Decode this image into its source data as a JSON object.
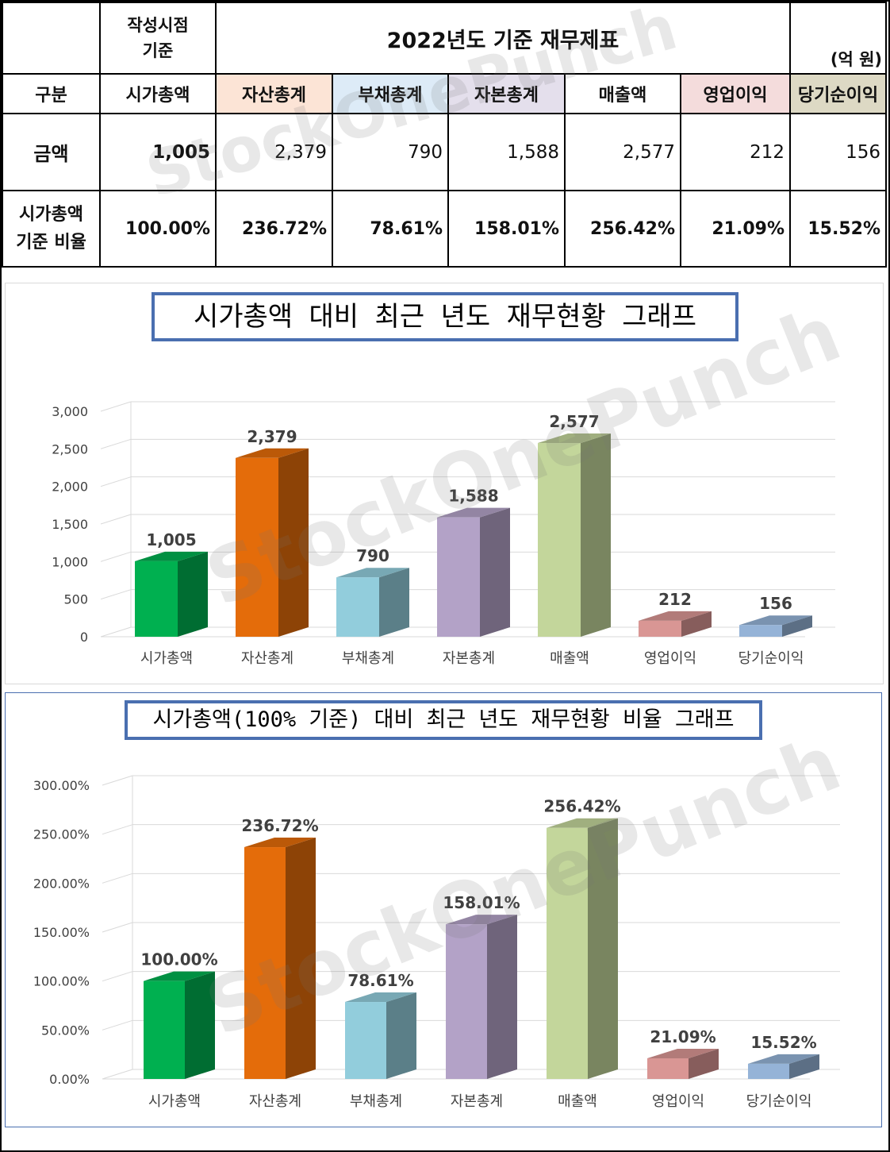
{
  "watermark": "StockOnePunch",
  "table": {
    "corner": "",
    "written_basis": [
      "작성시점",
      "기준"
    ],
    "title": "2022년도 기준 재무제표",
    "unit": "(억 원)",
    "row_header_label": "구분",
    "columns": [
      "시가총액",
      "자산총계",
      "부채총계",
      "자본총계",
      "매출액",
      "영업이익",
      "당기순이익"
    ],
    "column_colors": [
      "#ffffff",
      "#fce4d6",
      "#ddebf7",
      "#e4dfec",
      "#ffffff",
      "#f4dcdc",
      "#ddd9c4"
    ],
    "amount_label": "금액",
    "amounts": [
      "1,005",
      "2,379",
      "790",
      "1,588",
      "2,577",
      "212",
      "156"
    ],
    "ratio_label": [
      "시가총액",
      "기준 비율"
    ],
    "ratios": [
      "100.00%",
      "236.72%",
      "78.61%",
      "158.01%",
      "256.42%",
      "21.09%",
      "15.52%"
    ]
  },
  "chart_data": [
    {
      "type": "bar",
      "title": "시가총액 대비 최근 년도 재무현황 그래프",
      "categories": [
        "시가총액",
        "자산총계",
        "부채총계",
        "자본총계",
        "매출액",
        "영업이익",
        "당기순이익"
      ],
      "values": [
        1005,
        2379,
        790,
        1588,
        2577,
        212,
        156
      ],
      "value_labels": [
        "1,005",
        "2,379",
        "790",
        "1,588",
        "2,577",
        "212",
        "156"
      ],
      "ylim": [
        0,
        3000
      ],
      "yticks": [
        "0",
        "500",
        "1,000",
        "1,500",
        "2,000",
        "2,500",
        "3,000"
      ],
      "ytick_values": [
        0,
        500,
        1000,
        1500,
        2000,
        2500,
        3000
      ],
      "colors": [
        "#00b050",
        "#e46c0a",
        "#92cddc",
        "#b3a2c7",
        "#c3d69b",
        "#d99694",
        "#95b3d7"
      ],
      "grid": true,
      "xlabel": "",
      "ylabel": ""
    },
    {
      "type": "bar",
      "title": "시가총액(100% 기준) 대비 최근 년도 재무현황 비율 그래프",
      "categories": [
        "시가총액",
        "자산총계",
        "부채총계",
        "자본총계",
        "매출액",
        "영업이익",
        "당기순이익"
      ],
      "values": [
        100.0,
        236.72,
        78.61,
        158.01,
        256.42,
        21.09,
        15.52
      ],
      "value_labels": [
        "100.00%",
        "236.72%",
        "78.61%",
        "158.01%",
        "256.42%",
        "21.09%",
        "15.52%"
      ],
      "ylim": [
        0,
        300
      ],
      "yticks": [
        "0.00%",
        "50.00%",
        "100.00%",
        "150.00%",
        "200.00%",
        "250.00%",
        "300.00%"
      ],
      "ytick_values": [
        0,
        50,
        100,
        150,
        200,
        250,
        300
      ],
      "colors": [
        "#00b050",
        "#e46c0a",
        "#92cddc",
        "#b3a2c7",
        "#c3d69b",
        "#d99694",
        "#95b3d7"
      ],
      "grid": true,
      "xlabel": "",
      "ylabel": ""
    }
  ]
}
